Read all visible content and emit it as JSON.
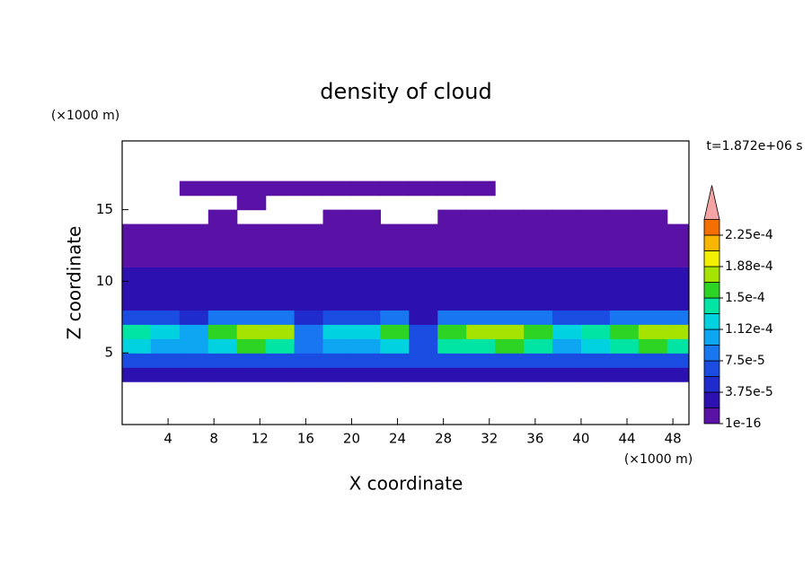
{
  "chart_data": {
    "type": "heatmap",
    "title": "density of cloud",
    "xlabel": "X coordinate",
    "ylabel": "Z coordinate",
    "x_unit": "(×1000 m)",
    "y_unit": "(×1000 m)",
    "annotation": "t=1.872e+06 s",
    "xlim": [
      0,
      49.4
    ],
    "ylim": [
      0,
      19.8
    ],
    "xticks": [
      4,
      8,
      12,
      16,
      20,
      24,
      28,
      32,
      36,
      40,
      44,
      48
    ],
    "yticks": [
      5,
      10,
      15
    ],
    "x": [
      1.25,
      3.75,
      6.25,
      8.75,
      11.25,
      13.75,
      16.25,
      18.75,
      21.25,
      23.75,
      26.25,
      28.75,
      31.25,
      33.75,
      36.25,
      38.75,
      41.25,
      43.75,
      46.25,
      48.75
    ],
    "z": [
      3.5,
      4.5,
      5.5,
      6.5,
      7.5,
      8.5,
      9.5,
      10.5,
      11.5,
      12.5,
      13.5,
      14.5,
      15.5,
      16.5
    ],
    "values": [
      [
        2.5e-05,
        2.5e-05,
        2.5e-05,
        2.5e-05,
        2.5e-05,
        2.5e-05,
        2.5e-05,
        2.5e-05,
        2.5e-05,
        2.5e-05,
        2.5e-05,
        2.5e-05,
        2.5e-05,
        2.5e-05,
        2.5e-05,
        2.5e-05,
        2.5e-05,
        2.5e-05,
        2.5e-05,
        2.5e-05
      ],
      [
        6e-05,
        6e-05,
        6e-05,
        6e-05,
        6e-05,
        6e-05,
        6e-05,
        6e-05,
        6e-05,
        6e-05,
        6e-05,
        6e-05,
        6e-05,
        6e-05,
        6e-05,
        6e-05,
        6e-05,
        6e-05,
        6e-05,
        6e-05
      ],
      [
        0.000119,
        0.000102,
        9.4e-05,
        0.000128,
        0.000153,
        0.000145,
        7.7e-05,
        0.00011,
        0.000102,
        0.000128,
        6e-05,
        0.000136,
        0.000145,
        0.000153,
        0.000136,
        0.000102,
        0.000119,
        0.000136,
        0.000153,
        0.000145
      ],
      [
        0.00014,
        0.00012,
        0.00011,
        0.00015,
        0.00018,
        0.00017,
        9e-05,
        0.00013,
        0.00012,
        0.00015,
        7e-05,
        0.00016,
        0.00017,
        0.00018,
        0.00016,
        0.00012,
        0.00014,
        0.00016,
        0.00018,
        0.00017
      ],
      [
        7e-05,
        6e-05,
        5.5e-05,
        7.5e-05,
        9e-05,
        8.5e-05,
        4.5e-05,
        6.5e-05,
        6e-05,
        7.5e-05,
        3.5e-05,
        8e-05,
        8.5e-05,
        9e-05,
        8e-05,
        6e-05,
        7e-05,
        8e-05,
        9e-05,
        8.5e-05
      ],
      [
        3e-05,
        3e-05,
        3e-05,
        3e-05,
        3e-05,
        3e-05,
        3e-05,
        3e-05,
        3e-05,
        3e-05,
        3e-05,
        3e-05,
        3e-05,
        3e-05,
        3e-05,
        3e-05,
        3e-05,
        3e-05,
        3e-05,
        3e-05
      ],
      [
        2.2e-05,
        2.2e-05,
        2.2e-05,
        2.2e-05,
        2.2e-05,
        2.2e-05,
        2.2e-05,
        2.2e-05,
        2.2e-05,
        2.2e-05,
        2.2e-05,
        2.2e-05,
        2.2e-05,
        2.2e-05,
        2.2e-05,
        2.2e-05,
        2.2e-05,
        2.2e-05,
        2.2e-05,
        2.2e-05
      ],
      [
        2e-05,
        2e-05,
        2e-05,
        2e-05,
        2e-05,
        2e-05,
        2e-05,
        2e-05,
        2e-05,
        2e-05,
        2e-05,
        2e-05,
        2e-05,
        2e-05,
        2e-05,
        2e-05,
        2e-05,
        2e-05,
        2e-05,
        2e-05
      ],
      [
        1.2e-05,
        1.2e-05,
        1.2e-05,
        1.2e-05,
        1.2e-05,
        1.2e-05,
        1.2e-05,
        1.2e-05,
        1.2e-05,
        1.2e-05,
        1.2e-05,
        1.2e-05,
        1.2e-05,
        1.2e-05,
        1.2e-05,
        1.2e-05,
        1.2e-05,
        1.2e-05,
        1.2e-05,
        1.2e-05
      ],
      [
        1e-05,
        1e-05,
        1e-05,
        1e-05,
        1e-05,
        1e-05,
        1e-05,
        1e-05,
        1e-05,
        1e-05,
        1e-05,
        1e-05,
        1e-05,
        1e-05,
        1e-05,
        1e-05,
        1e-05,
        1e-05,
        1e-05,
        1e-05
      ],
      [
        8e-06,
        8e-06,
        8e-06,
        8e-06,
        8e-06,
        8e-06,
        8e-06,
        8e-06,
        8e-06,
        8e-06,
        8e-06,
        8e-06,
        8e-06,
        8e-06,
        8e-06,
        8e-06,
        8e-06,
        8e-06,
        8e-06,
        8e-06
      ],
      [
        null,
        null,
        null,
        5e-06,
        null,
        null,
        null,
        5e-06,
        5e-06,
        null,
        null,
        5e-06,
        5e-06,
        5e-06,
        5e-06,
        5e-06,
        5e-06,
        5e-06,
        5e-06,
        null
      ],
      [
        null,
        null,
        null,
        null,
        5e-06,
        null,
        null,
        null,
        null,
        null,
        null,
        null,
        null,
        null,
        null,
        null,
        null,
        null,
        null,
        null
      ],
      [
        null,
        null,
        5e-06,
        5e-06,
        5e-06,
        5e-06,
        5e-06,
        5e-06,
        5e-06,
        5e-06,
        5e-06,
        5e-06,
        5e-06,
        null,
        null,
        null,
        null,
        null,
        null,
        null
      ]
    ],
    "levels": [
      1e-16,
      1.875e-05,
      3.75e-05,
      5.625e-05,
      7.5e-05,
      9.375e-05,
      0.0001125,
      0.00013125,
      0.00015,
      0.00016875,
      0.0001875,
      0.00020625,
      0.000225,
      0.00024375
    ],
    "colors": [
      "#5a12a6",
      "#2c10b0",
      "#1f2bcb",
      "#1a4ce2",
      "#1776f0",
      "#0ca6f2",
      "#00d2e0",
      "#00e4a4",
      "#2ed424",
      "#a6e400",
      "#f2f000",
      "#f8b600",
      "#f46e00"
    ],
    "extend_color": "#f4a4a4",
    "colorbar_ticks": [
      1e-16,
      {
        "value": 3.75e-05,
        "label": "3.75e-5"
      },
      {
        "value": 7.5e-05,
        "label": "7.5e-5"
      },
      {
        "value": 0.0001125,
        "label": "1.12e-4"
      },
      {
        "value": 0.00015,
        "label": "1.5e-4"
      },
      {
        "value": 0.0001875,
        "label": "1.88e-4"
      },
      {
        "value": 0.000225,
        "label": "2.25e-4"
      }
    ]
  }
}
